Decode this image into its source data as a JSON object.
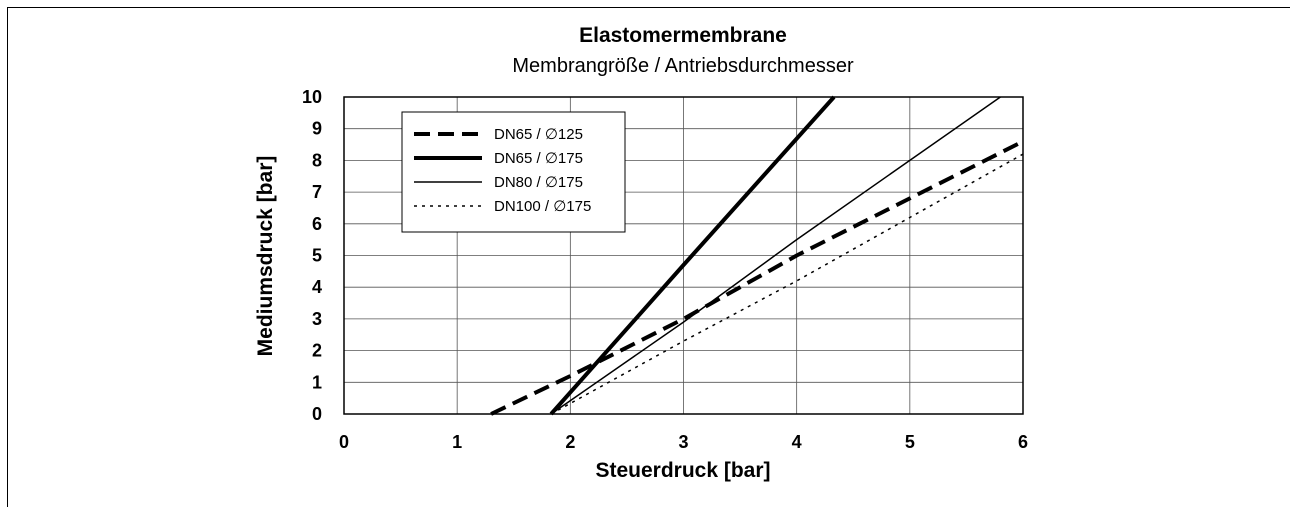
{
  "chart_data": {
    "type": "line",
    "title": "Elastomermembrane",
    "subtitle": "Membrangröße / Antriebsdurchmesser",
    "xlabel": "Steuerdruck [bar]",
    "ylabel": "Mediumsdruck [bar]",
    "xlim": [
      0,
      6
    ],
    "ylim": [
      0,
      10
    ],
    "xticks": [
      "0",
      "1",
      "2",
      "3",
      "4",
      "5",
      "6"
    ],
    "yticks": [
      "0",
      "1",
      "2",
      "3",
      "4",
      "5",
      "6",
      "7",
      "8",
      "9",
      "10"
    ],
    "grid": true,
    "legend_position": "top-left",
    "series": [
      {
        "name": "DN65 / ∅125",
        "style": "dashed",
        "weight": "bold",
        "x": [
          1.3,
          2.0,
          3.0,
          4.0,
          5.0,
          6.0
        ],
        "y": [
          0.0,
          1.2,
          3.0,
          5.0,
          6.8,
          8.6
        ]
      },
      {
        "name": "DN65 / ∅175",
        "style": "solid",
        "weight": "bold",
        "x": [
          1.83,
          3.0,
          4.33
        ],
        "y": [
          0.0,
          4.7,
          10.0
        ]
      },
      {
        "name": "DN80 / ∅175",
        "style": "solid",
        "weight": "thin",
        "x": [
          1.83,
          3.0,
          4.0,
          5.0,
          5.8
        ],
        "y": [
          0.0,
          2.9,
          5.5,
          8.0,
          10.0
        ]
      },
      {
        "name": "DN100 / ∅175",
        "style": "dotted",
        "weight": "thin",
        "x": [
          1.83,
          3.0,
          4.0,
          5.0,
          6.0
        ],
        "y": [
          0.0,
          2.3,
          4.2,
          6.2,
          8.2
        ]
      }
    ]
  }
}
